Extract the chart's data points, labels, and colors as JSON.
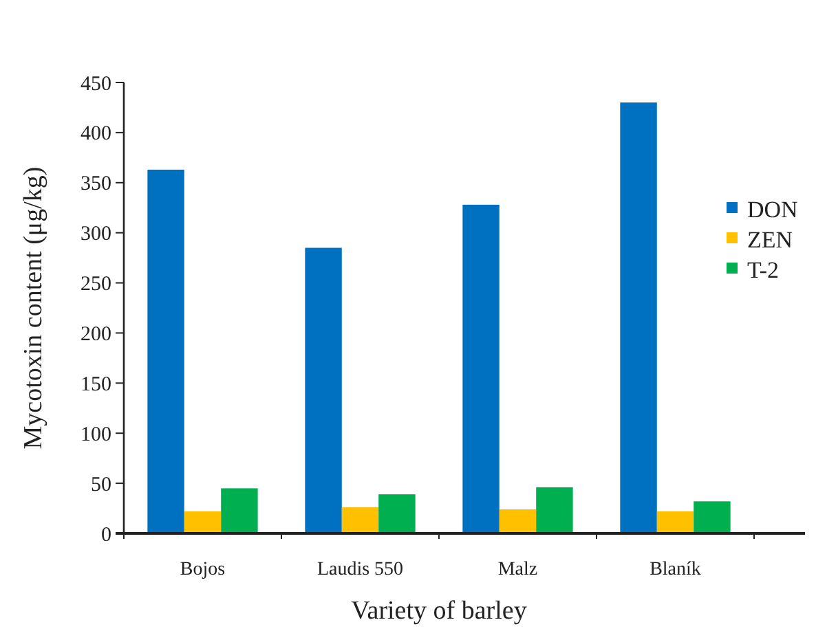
{
  "chart_data": {
    "type": "bar",
    "xlabel": "Variety of barley",
    "ylabel": "Mycotoxin content (μg/kg)",
    "categories": [
      "Bojos",
      "Laudis 550",
      "Malz",
      "Blaník"
    ],
    "series": [
      {
        "name": "DON",
        "color": "#0070c0",
        "values": [
          363,
          285,
          328,
          430
        ]
      },
      {
        "name": "ZEN",
        "color": "#ffc000",
        "values": [
          22,
          26,
          24,
          22
        ]
      },
      {
        "name": "T-2",
        "color": "#00b050",
        "values": [
          45,
          39,
          46,
          32
        ]
      }
    ],
    "ylim": [
      0,
      450
    ],
    "yticks": [
      0,
      50,
      100,
      150,
      200,
      250,
      300,
      350,
      400,
      450
    ],
    "grid": false,
    "legend": "right"
  }
}
